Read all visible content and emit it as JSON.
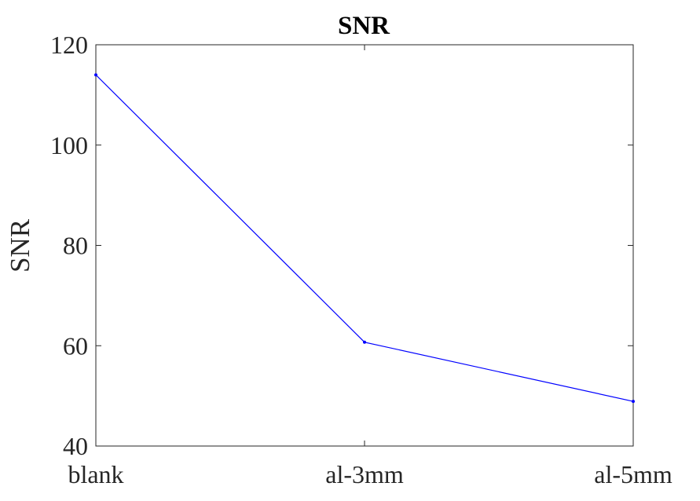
{
  "chart_data": {
    "type": "line",
    "title": "SNR",
    "xlabel": "",
    "ylabel": "SNR",
    "categories": [
      "blank",
      "al-3mm",
      "al-5mm"
    ],
    "series": [
      {
        "values": [
          114,
          60.7,
          48.9
        ],
        "color": "#0000ff"
      }
    ],
    "ylim": [
      40,
      120
    ],
    "yticks": [
      40,
      60,
      80,
      100,
      120
    ],
    "ytick_labels": [
      "40",
      "60",
      "80",
      "100",
      "120"
    ],
    "grid": false,
    "box": true,
    "legend": "none"
  }
}
